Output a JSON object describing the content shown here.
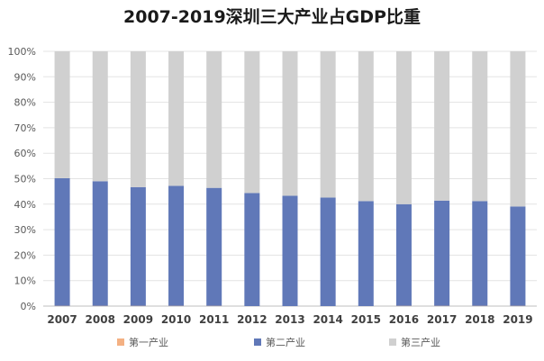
{
  "chart_data": {
    "type": "bar",
    "stacked": true,
    "percent": true,
    "title": "2007-2019深圳三大产业占GDP比重",
    "categories": [
      "2007",
      "2008",
      "2009",
      "2010",
      "2011",
      "2012",
      "2013",
      "2014",
      "2015",
      "2016",
      "2017",
      "2018",
      "2019"
    ],
    "series": [
      {
        "name": "第一产业",
        "color": "#f4b183",
        "values": [
          0.1,
          0.1,
          0.1,
          0.1,
          0.1,
          0.0,
          0.0,
          0.0,
          0.0,
          0.1,
          0.1,
          0.1,
          0.1
        ]
      },
      {
        "name": "第二产业",
        "color": "#6078b8",
        "values": [
          50.1,
          48.9,
          46.6,
          47.1,
          46.3,
          44.4,
          43.3,
          42.6,
          41.2,
          39.9,
          41.3,
          41.1,
          39.0
        ]
      },
      {
        "name": "第三产业",
        "color": "#d0d0d0",
        "values": [
          49.8,
          51.0,
          53.3,
          52.8,
          53.6,
          55.6,
          56.7,
          57.4,
          58.8,
          60.0,
          58.6,
          58.8,
          60.9
        ]
      }
    ],
    "y_ticks": [
      "0%",
      "10%",
      "20%",
      "30%",
      "40%",
      "50%",
      "60%",
      "70%",
      "80%",
      "90%",
      "100%"
    ],
    "ylim": [
      0,
      100
    ],
    "grid": true,
    "legend_position": "bottom"
  }
}
